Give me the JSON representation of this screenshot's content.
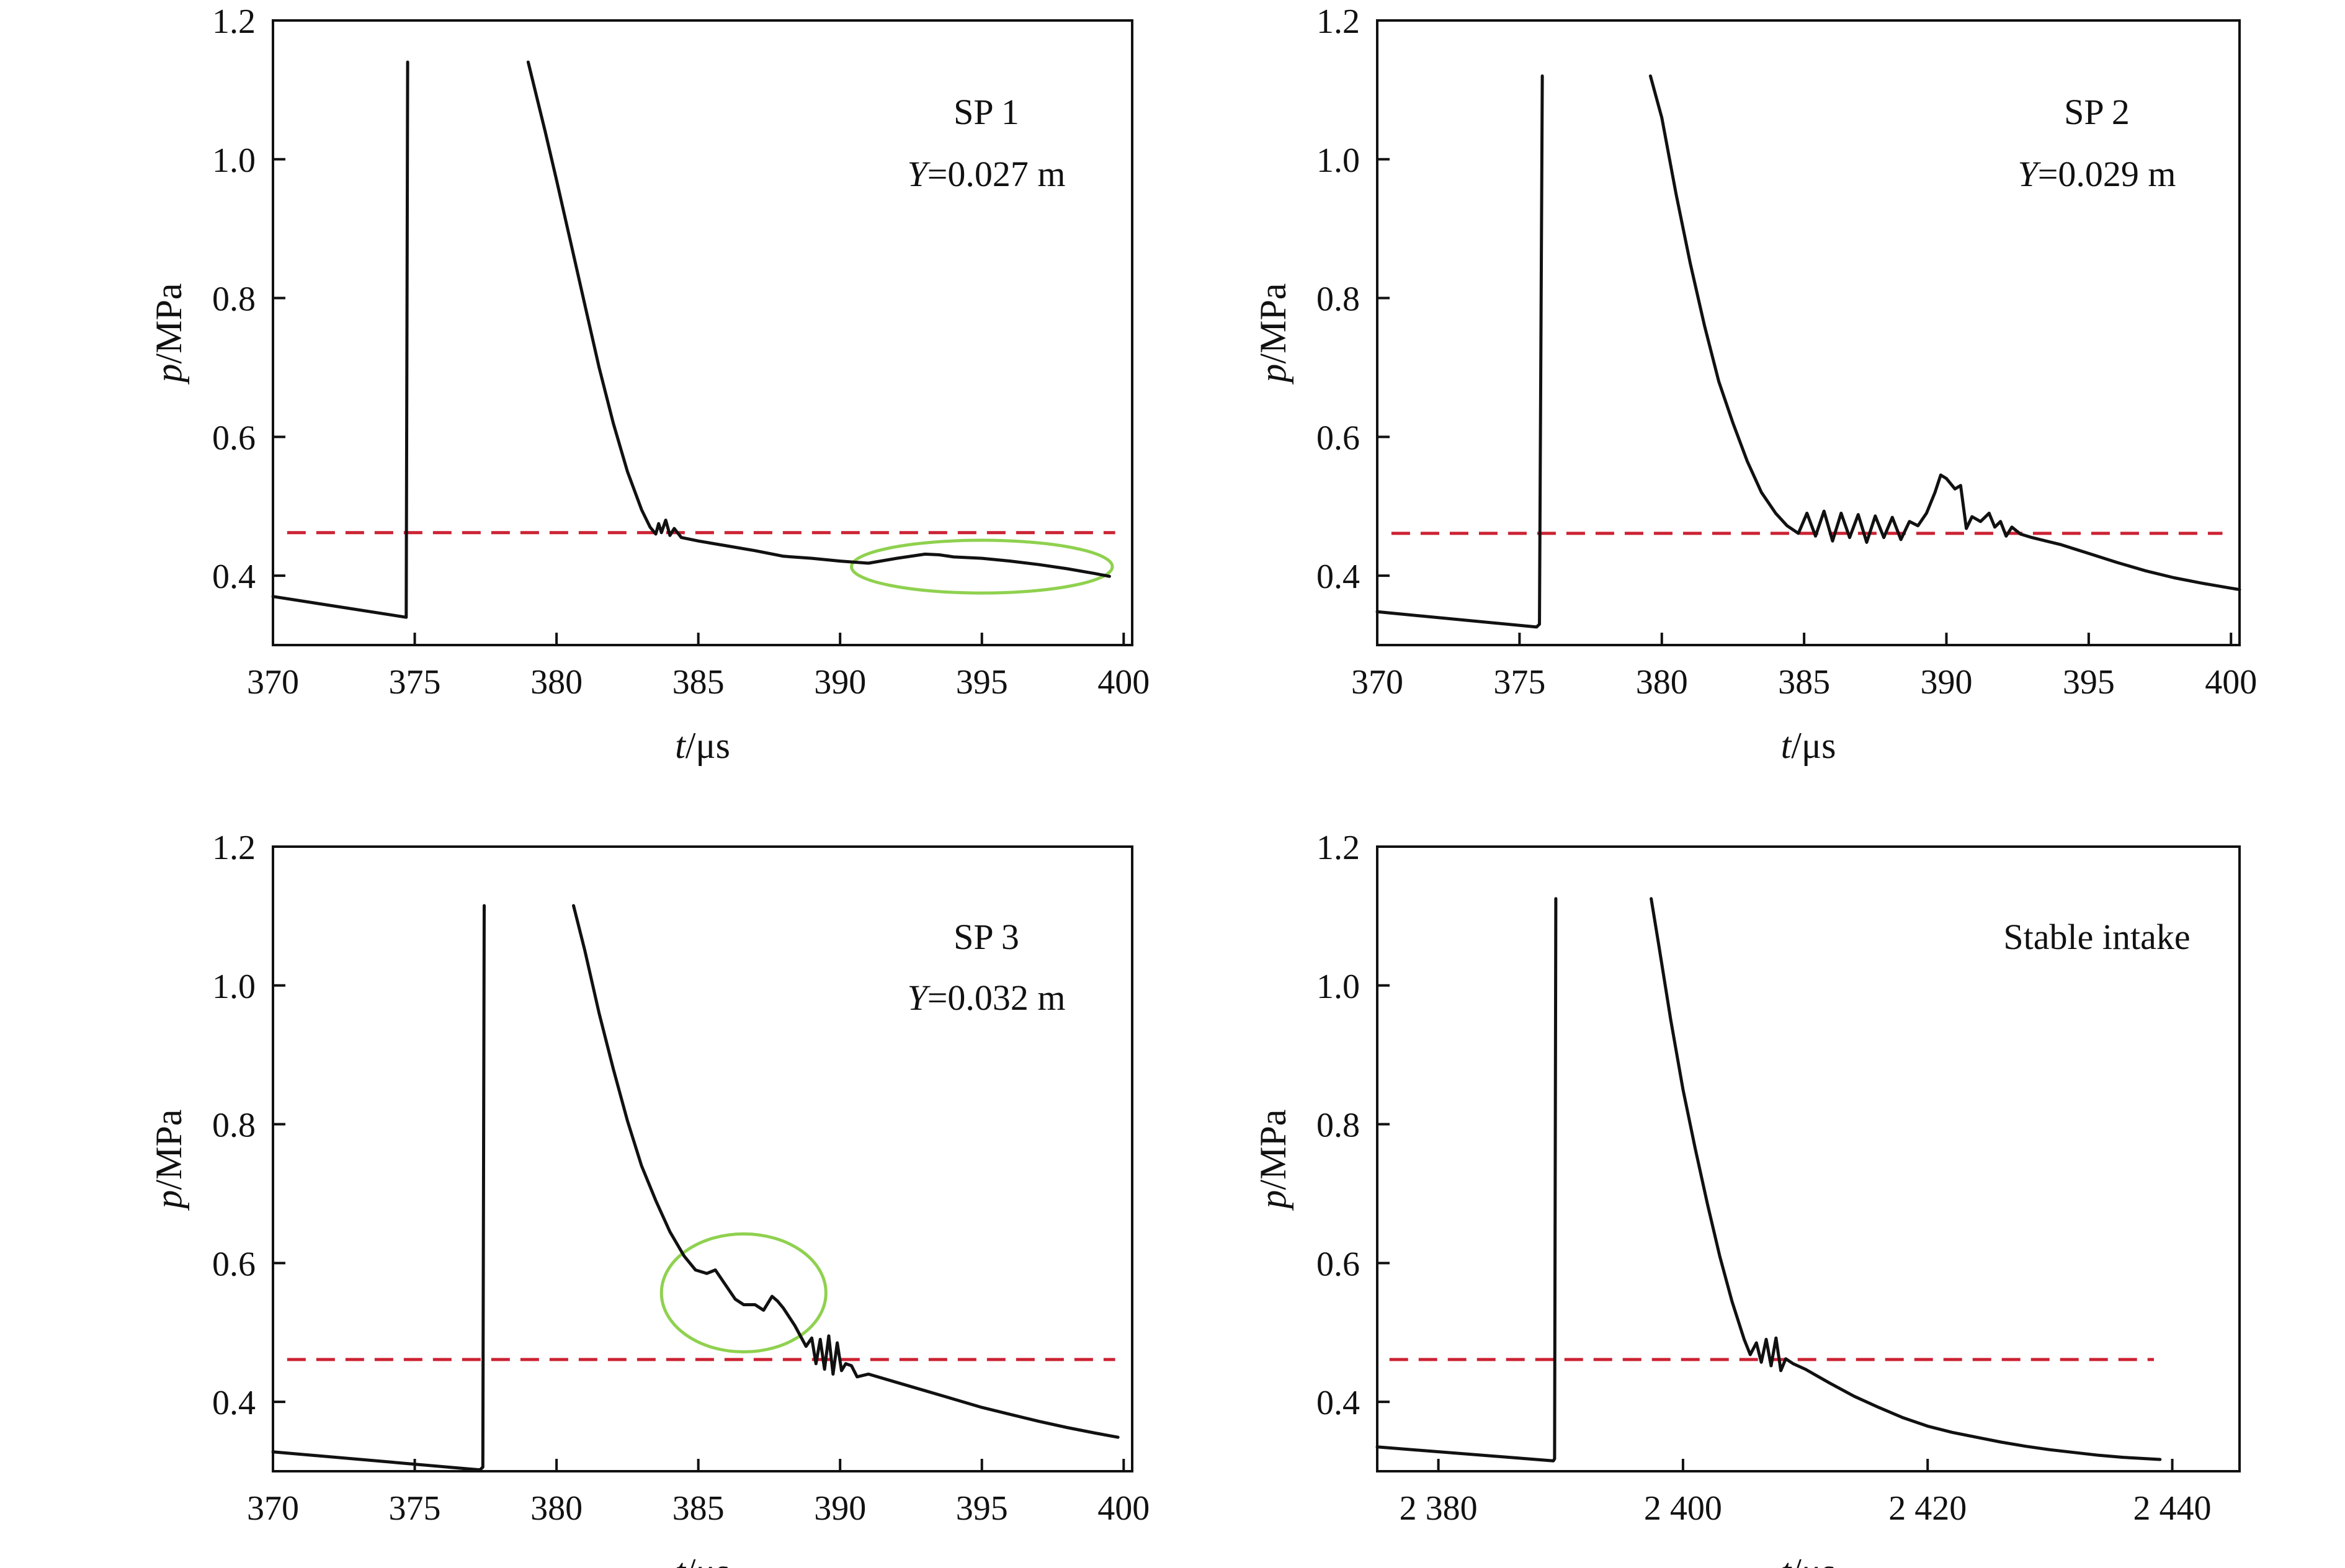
{
  "chart_data": [
    {
      "type": "line",
      "panel": "top-left",
      "xlim": [
        370,
        400.3
      ],
      "ylim": [
        0.3,
        1.2
      ],
      "xticks": [
        370,
        375,
        380,
        385,
        390,
        395,
        400
      ],
      "xtick_labels": [
        "370",
        "375",
        "380",
        "385",
        "390",
        "395",
        "400"
      ],
      "yticks": [
        0.4,
        0.6,
        0.8,
        1.0,
        1.2
      ],
      "ytick_labels": [
        "0.4",
        "0.6",
        "0.8",
        "1.0",
        "1.2"
      ],
      "xlabel_var": "t",
      "xlabel_unit": "/μs",
      "ylabel_var": "p",
      "ylabel_unit": "/MPa",
      "annotation": {
        "line1": "SP 1",
        "line2_var": "Y",
        "line2_rest": "=0.027 m"
      },
      "colors": {
        "curve": "#111111",
        "reference": "#cc2233",
        "highlight": "#8fd14f"
      },
      "reference_line": {
        "y": 0.462,
        "x": [
          370.5,
          399.7
        ]
      },
      "highlight_ellipse": {
        "cx": 395.0,
        "cy": 0.413,
        "rx": 4.6,
        "ry": 0.038
      },
      "series": [
        {
          "values": [
            [
              370.0,
              0.37
            ],
            [
              374.7,
              0.34
            ],
            [
              374.7,
              0.345
            ],
            [
              374.75,
              1.14
            ]
          ]
        },
        {
          "values": [
            [
              379.0,
              1.14
            ],
            [
              379.3,
              1.09
            ],
            [
              379.6,
              1.04
            ],
            [
              380.0,
              0.97
            ],
            [
              380.5,
              0.88
            ],
            [
              381.0,
              0.79
            ],
            [
              381.5,
              0.7
            ],
            [
              382.0,
              0.62
            ],
            [
              382.5,
              0.55
            ],
            [
              383.0,
              0.495
            ],
            [
              383.3,
              0.47
            ],
            [
              383.5,
              0.46
            ],
            [
              383.6,
              0.475
            ],
            [
              383.7,
              0.462
            ],
            [
              383.85,
              0.48
            ],
            [
              384.0,
              0.458
            ],
            [
              384.15,
              0.468
            ],
            [
              384.4,
              0.455
            ],
            [
              385,
              0.45
            ],
            [
              386,
              0.443
            ],
            [
              387,
              0.436
            ],
            [
              388,
              0.428
            ],
            [
              389,
              0.425
            ],
            [
              390,
              0.421
            ],
            [
              391,
              0.418
            ],
            [
              392,
              0.425
            ],
            [
              393,
              0.431
            ],
            [
              393.5,
              0.43
            ],
            [
              394,
              0.427
            ],
            [
              395,
              0.425
            ],
            [
              396,
              0.421
            ],
            [
              397,
              0.416
            ],
            [
              398,
              0.41
            ],
            [
              399,
              0.403
            ],
            [
              399.5,
              0.399
            ]
          ]
        }
      ]
    },
    {
      "type": "line",
      "panel": "top-right",
      "xlim": [
        370,
        400.3
      ],
      "ylim": [
        0.3,
        1.2
      ],
      "xticks": [
        370,
        375,
        380,
        385,
        390,
        395,
        400
      ],
      "xtick_labels": [
        "370",
        "375",
        "380",
        "385",
        "390",
        "395",
        "400"
      ],
      "yticks": [
        0.4,
        0.6,
        0.8,
        1.0,
        1.2
      ],
      "ytick_labels": [
        "0.4",
        "0.6",
        "0.8",
        "1.0",
        "1.2"
      ],
      "xlabel_var": "t",
      "xlabel_unit": "/μs",
      "ylabel_var": "p",
      "ylabel_unit": "/MPa",
      "annotation": {
        "line1": "SP 2",
        "line2_var": "Y",
        "line2_rest": "=0.029 m"
      },
      "colors": {
        "curve": "#111111",
        "reference": "#cc2233",
        "highlight": "#8fd14f"
      },
      "reference_line": {
        "y": 0.461,
        "x": [
          370.5,
          399.7
        ]
      },
      "series": [
        {
          "values": [
            [
              370.0,
              0.348
            ],
            [
              375.6,
              0.326
            ],
            [
              375.7,
              0.33
            ],
            [
              375.8,
              1.12
            ]
          ]
        },
        {
          "values": [
            [
              379.6,
              1.12
            ],
            [
              380.0,
              1.06
            ],
            [
              380.5,
              0.95
            ],
            [
              381.0,
              0.85
            ],
            [
              381.5,
              0.76
            ],
            [
              382.0,
              0.68
            ],
            [
              382.5,
              0.62
            ],
            [
              383.0,
              0.565
            ],
            [
              383.5,
              0.52
            ],
            [
              384.0,
              0.49
            ],
            [
              384.4,
              0.472
            ],
            [
              384.8,
              0.461
            ],
            [
              385.1,
              0.49
            ],
            [
              385.4,
              0.457
            ],
            [
              385.7,
              0.493
            ],
            [
              386.0,
              0.45
            ],
            [
              386.3,
              0.49
            ],
            [
              386.6,
              0.455
            ],
            [
              386.9,
              0.488
            ],
            [
              387.2,
              0.448
            ],
            [
              387.5,
              0.486
            ],
            [
              387.8,
              0.455
            ],
            [
              388.1,
              0.484
            ],
            [
              388.4,
              0.452
            ],
            [
              388.7,
              0.478
            ],
            [
              389.0,
              0.472
            ],
            [
              389.3,
              0.49
            ],
            [
              389.6,
              0.52
            ],
            [
              389.8,
              0.545
            ],
            [
              390.0,
              0.54
            ],
            [
              390.3,
              0.525
            ],
            [
              390.5,
              0.53
            ],
            [
              390.7,
              0.468
            ],
            [
              390.9,
              0.485
            ],
            [
              391.2,
              0.478
            ],
            [
              391.5,
              0.49
            ],
            [
              391.7,
              0.47
            ],
            [
              391.9,
              0.478
            ],
            [
              392.1,
              0.457
            ],
            [
              392.3,
              0.47
            ],
            [
              392.6,
              0.46
            ],
            [
              393,
              0.455
            ],
            [
              394,
              0.445
            ],
            [
              395,
              0.432
            ],
            [
              396,
              0.419
            ],
            [
              397,
              0.407
            ],
            [
              398,
              0.397
            ],
            [
              399,
              0.389
            ],
            [
              400,
              0.382
            ],
            [
              400.3,
              0.38
            ]
          ]
        }
      ]
    },
    {
      "type": "line",
      "panel": "bottom-left",
      "xlim": [
        370,
        400.3
      ],
      "ylim": [
        0.3,
        1.2
      ],
      "xticks": [
        370,
        375,
        380,
        385,
        390,
        395,
        400
      ],
      "xtick_labels": [
        "370",
        "375",
        "380",
        "385",
        "390",
        "395",
        "400"
      ],
      "yticks": [
        0.4,
        0.6,
        0.8,
        1.0,
        1.2
      ],
      "ytick_labels": [
        "0.4",
        "0.6",
        "0.8",
        "1.0",
        "1.2"
      ],
      "xlabel_var": "t",
      "xlabel_unit": "/μs",
      "ylabel_var": "p",
      "ylabel_unit": "/MPa",
      "annotation": {
        "line1": "SP 3",
        "line2_var": "Y",
        "line2_rest": "=0.032 m"
      },
      "colors": {
        "curve": "#111111",
        "reference": "#cc2233",
        "highlight": "#8fd14f"
      },
      "reference_line": {
        "y": 0.461,
        "x": [
          370.5,
          399.7
        ]
      },
      "highlight_ellipse": {
        "cx": 386.6,
        "cy": 0.557,
        "rx": 2.9,
        "ry": 0.085
      },
      "series": [
        {
          "values": [
            [
              370.0,
              0.328
            ],
            [
              377.3,
              0.302
            ],
            [
              377.4,
              0.306
            ],
            [
              377.45,
              1.115
            ]
          ]
        },
        {
          "values": [
            [
              380.6,
              1.115
            ],
            [
              381.0,
              1.05
            ],
            [
              381.5,
              0.96
            ],
            [
              382.0,
              0.88
            ],
            [
              382.5,
              0.805
            ],
            [
              383.0,
              0.74
            ],
            [
              383.5,
              0.69
            ],
            [
              384.0,
              0.645
            ],
            [
              384.5,
              0.61
            ],
            [
              384.9,
              0.59
            ],
            [
              385.3,
              0.585
            ],
            [
              385.6,
              0.59
            ],
            [
              386.0,
              0.566
            ],
            [
              386.3,
              0.548
            ],
            [
              386.6,
              0.54
            ],
            [
              387.0,
              0.54
            ],
            [
              387.3,
              0.532
            ],
            [
              387.6,
              0.552
            ],
            [
              387.8,
              0.545
            ],
            [
              388.0,
              0.535
            ],
            [
              388.4,
              0.51
            ],
            [
              388.8,
              0.48
            ],
            [
              389.0,
              0.492
            ],
            [
              389.15,
              0.455
            ],
            [
              389.3,
              0.49
            ],
            [
              389.45,
              0.447
            ],
            [
              389.6,
              0.495
            ],
            [
              389.75,
              0.44
            ],
            [
              389.9,
              0.485
            ],
            [
              390.05,
              0.445
            ],
            [
              390.2,
              0.455
            ],
            [
              390.4,
              0.452
            ],
            [
              390.6,
              0.436
            ],
            [
              391,
              0.44
            ],
            [
              392,
              0.428
            ],
            [
              393,
              0.416
            ],
            [
              394,
              0.404
            ],
            [
              395,
              0.392
            ],
            [
              396,
              0.382
            ],
            [
              397,
              0.372
            ],
            [
              398,
              0.363
            ],
            [
              399,
              0.355
            ],
            [
              399.8,
              0.349
            ]
          ]
        }
      ]
    },
    {
      "type": "line",
      "panel": "bottom-right",
      "xlim": [
        2375,
        2445.5
      ],
      "ylim": [
        0.3,
        1.2
      ],
      "xticks": [
        2380,
        2400,
        2420,
        2440
      ],
      "xtick_labels": [
        "2 380",
        "2 400",
        "2 420",
        "2 440"
      ],
      "yticks": [
        0.4,
        0.6,
        0.8,
        1.0,
        1.2
      ],
      "ytick_labels": [
        "0.4",
        "0.6",
        "0.8",
        "1.0",
        "1.2"
      ],
      "xlabel_var": "t",
      "xlabel_unit": "/μs",
      "ylabel_var": "p",
      "ylabel_unit": "/MPa",
      "annotation": {
        "line1": "Stable intake",
        "line2_var": "",
        "line2_rest": ""
      },
      "colors": {
        "curve": "#111111",
        "reference": "#cc2233",
        "highlight": "#8fd14f"
      },
      "reference_line": {
        "y": 0.461,
        "x": [
          2376,
          2438.5
        ]
      },
      "series": [
        {
          "values": [
            [
              2375.0,
              0.335
            ],
            [
              2389.4,
              0.315
            ],
            [
              2389.5,
              0.318
            ],
            [
              2389.6,
              1.125
            ]
          ]
        },
        {
          "values": [
            [
              2397.4,
              1.125
            ],
            [
              2398,
              1.06
            ],
            [
              2399,
              0.95
            ],
            [
              2400,
              0.85
            ],
            [
              2401,
              0.765
            ],
            [
              2402,
              0.685
            ],
            [
              2403,
              0.61
            ],
            [
              2404,
              0.545
            ],
            [
              2405,
              0.49
            ],
            [
              2405.5,
              0.468
            ],
            [
              2406,
              0.485
            ],
            [
              2406.4,
              0.457
            ],
            [
              2406.8,
              0.49
            ],
            [
              2407.2,
              0.452
            ],
            [
              2407.6,
              0.492
            ],
            [
              2408.0,
              0.445
            ],
            [
              2408.4,
              0.462
            ],
            [
              2409,
              0.455
            ],
            [
              2410,
              0.447
            ],
            [
              2412,
              0.427
            ],
            [
              2414,
              0.408
            ],
            [
              2416,
              0.392
            ],
            [
              2418,
              0.377
            ],
            [
              2420,
              0.365
            ],
            [
              2422,
              0.356
            ],
            [
              2424,
              0.349
            ],
            [
              2426,
              0.342
            ],
            [
              2428,
              0.336
            ],
            [
              2430,
              0.331
            ],
            [
              2432,
              0.327
            ],
            [
              2434,
              0.323
            ],
            [
              2436,
              0.32
            ],
            [
              2438,
              0.318
            ],
            [
              2439,
              0.317
            ]
          ]
        }
      ]
    }
  ]
}
